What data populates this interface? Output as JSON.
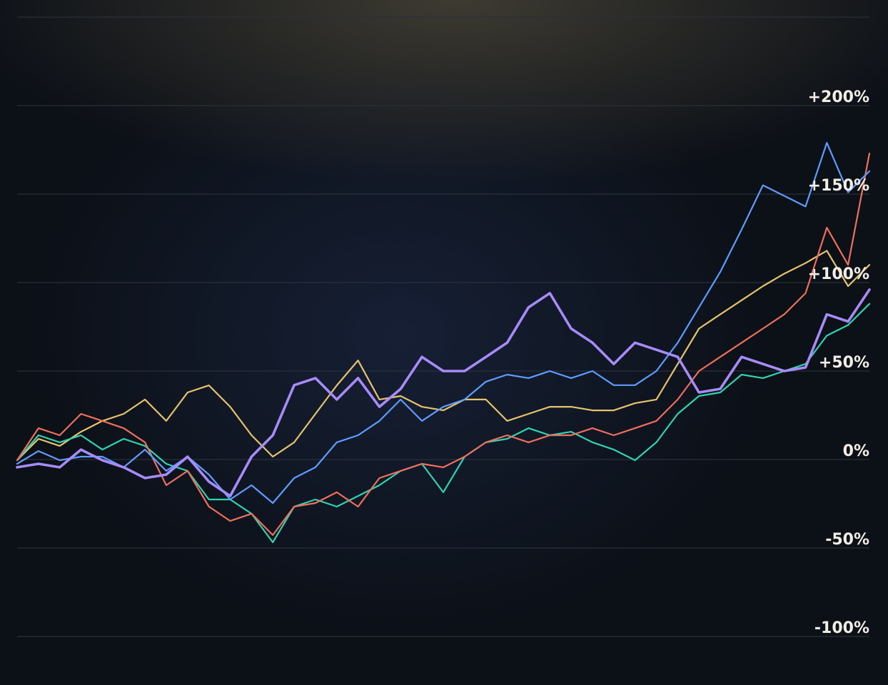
{
  "chart_data": {
    "type": "line",
    "title": "",
    "xlabel": "",
    "ylabel": "",
    "ylim": [
      -100,
      250
    ],
    "xlim": [
      0,
      40
    ],
    "grid": true,
    "legend": "none",
    "y_gridlines": [
      -100,
      -50,
      0,
      50,
      100,
      150,
      200,
      250
    ],
    "y_tick_labels": [
      {
        "value": -100,
        "label": "-100%"
      },
      {
        "value": -50,
        "label": "-50%"
      },
      {
        "value": 0,
        "label": "0%"
      },
      {
        "value": 50,
        "label": "+50%"
      },
      {
        "value": 100,
        "label": "+100%"
      },
      {
        "value": 150,
        "label": "+150%"
      },
      {
        "value": 200,
        "label": "+200%"
      }
    ],
    "x": [
      0,
      1,
      2,
      3,
      4,
      5,
      6,
      7,
      8,
      9,
      10,
      11,
      12,
      13,
      14,
      15,
      16,
      17,
      18,
      19,
      20,
      21,
      22,
      23,
      24,
      25,
      26,
      27,
      28,
      29,
      30,
      31,
      32,
      33,
      34,
      35,
      36,
      37,
      38,
      39,
      40
    ],
    "series": [
      {
        "name": "yellow",
        "color": "#e6c46c",
        "width": 2.2,
        "values": [
          -0.4,
          11.7,
          7.7,
          15.7,
          21.8,
          25.8,
          33.9,
          21.8,
          37.9,
          41.9,
          29.8,
          13.7,
          1.6,
          9.7,
          25.8,
          41.9,
          56,
          33.9,
          35.9,
          29.8,
          27.8,
          33.9,
          33.9,
          21.8,
          25.8,
          29.8,
          29.8,
          27.8,
          27.8,
          31.8,
          33.9,
          54,
          74,
          82,
          90,
          98,
          105,
          111,
          118,
          98,
          110
        ]
      },
      {
        "name": "teal",
        "color": "#2fd3b1",
        "width": 2.2,
        "values": [
          -0.4,
          13.7,
          9.7,
          13.7,
          5.6,
          11.7,
          7.7,
          -2.4,
          -6.4,
          -22.6,
          -22.6,
          -30.6,
          -46.8,
          -26.6,
          -22.6,
          -26.6,
          -20.6,
          -14.5,
          -6.4,
          -2.4,
          -18.5,
          1.6,
          9.7,
          11.7,
          17.7,
          13.7,
          15.7,
          9.7,
          5.6,
          -0.4,
          9.7,
          25.8,
          35.9,
          37.9,
          48,
          46,
          50,
          54,
          70,
          76,
          88
        ]
      },
      {
        "name": "red",
        "color": "#ef6f5c",
        "width": 2.2,
        "values": [
          -0.4,
          17.7,
          13.7,
          25.8,
          21.8,
          17.7,
          9.7,
          -14.5,
          -6.4,
          -26.6,
          -34.7,
          -30.6,
          -42.7,
          -26.6,
          -24.6,
          -18.5,
          -26.6,
          -10.5,
          -6.4,
          -2.4,
          -4.4,
          1.6,
          9.7,
          13.7,
          9.7,
          13.7,
          13.7,
          17.7,
          13.7,
          17.7,
          21.8,
          33.9,
          50,
          58,
          66,
          74,
          82,
          94,
          131,
          110,
          173
        ]
      },
      {
        "name": "blue",
        "color": "#5e9cff",
        "width": 2.2,
        "values": [
          -2.4,
          4.8,
          -0.4,
          1.6,
          1.6,
          -4.4,
          5.6,
          -6.4,
          1.6,
          -8.5,
          -22.6,
          -14.5,
          -24.6,
          -10.5,
          -4.4,
          9.7,
          13.7,
          21.8,
          33.9,
          21.8,
          29.8,
          33.9,
          44,
          48,
          46,
          50,
          46,
          50,
          42,
          42,
          50,
          66,
          86,
          106,
          130,
          155,
          149,
          143,
          179,
          151,
          163
        ]
      },
      {
        "name": "purple",
        "color": "#a78bfa",
        "width": 3.6,
        "values": [
          -4.4,
          -2.4,
          -4.4,
          5.6,
          -0.4,
          -4.4,
          -10.5,
          -8.5,
          1.6,
          -12.5,
          -20.6,
          1.6,
          13.7,
          42,
          46,
          33.9,
          46,
          29.8,
          39.9,
          58,
          50,
          50,
          58,
          66,
          86,
          94,
          74,
          66,
          54,
          66,
          62,
          58,
          37.9,
          39.9,
          58,
          54,
          50,
          52,
          82,
          78,
          96
        ]
      }
    ]
  }
}
